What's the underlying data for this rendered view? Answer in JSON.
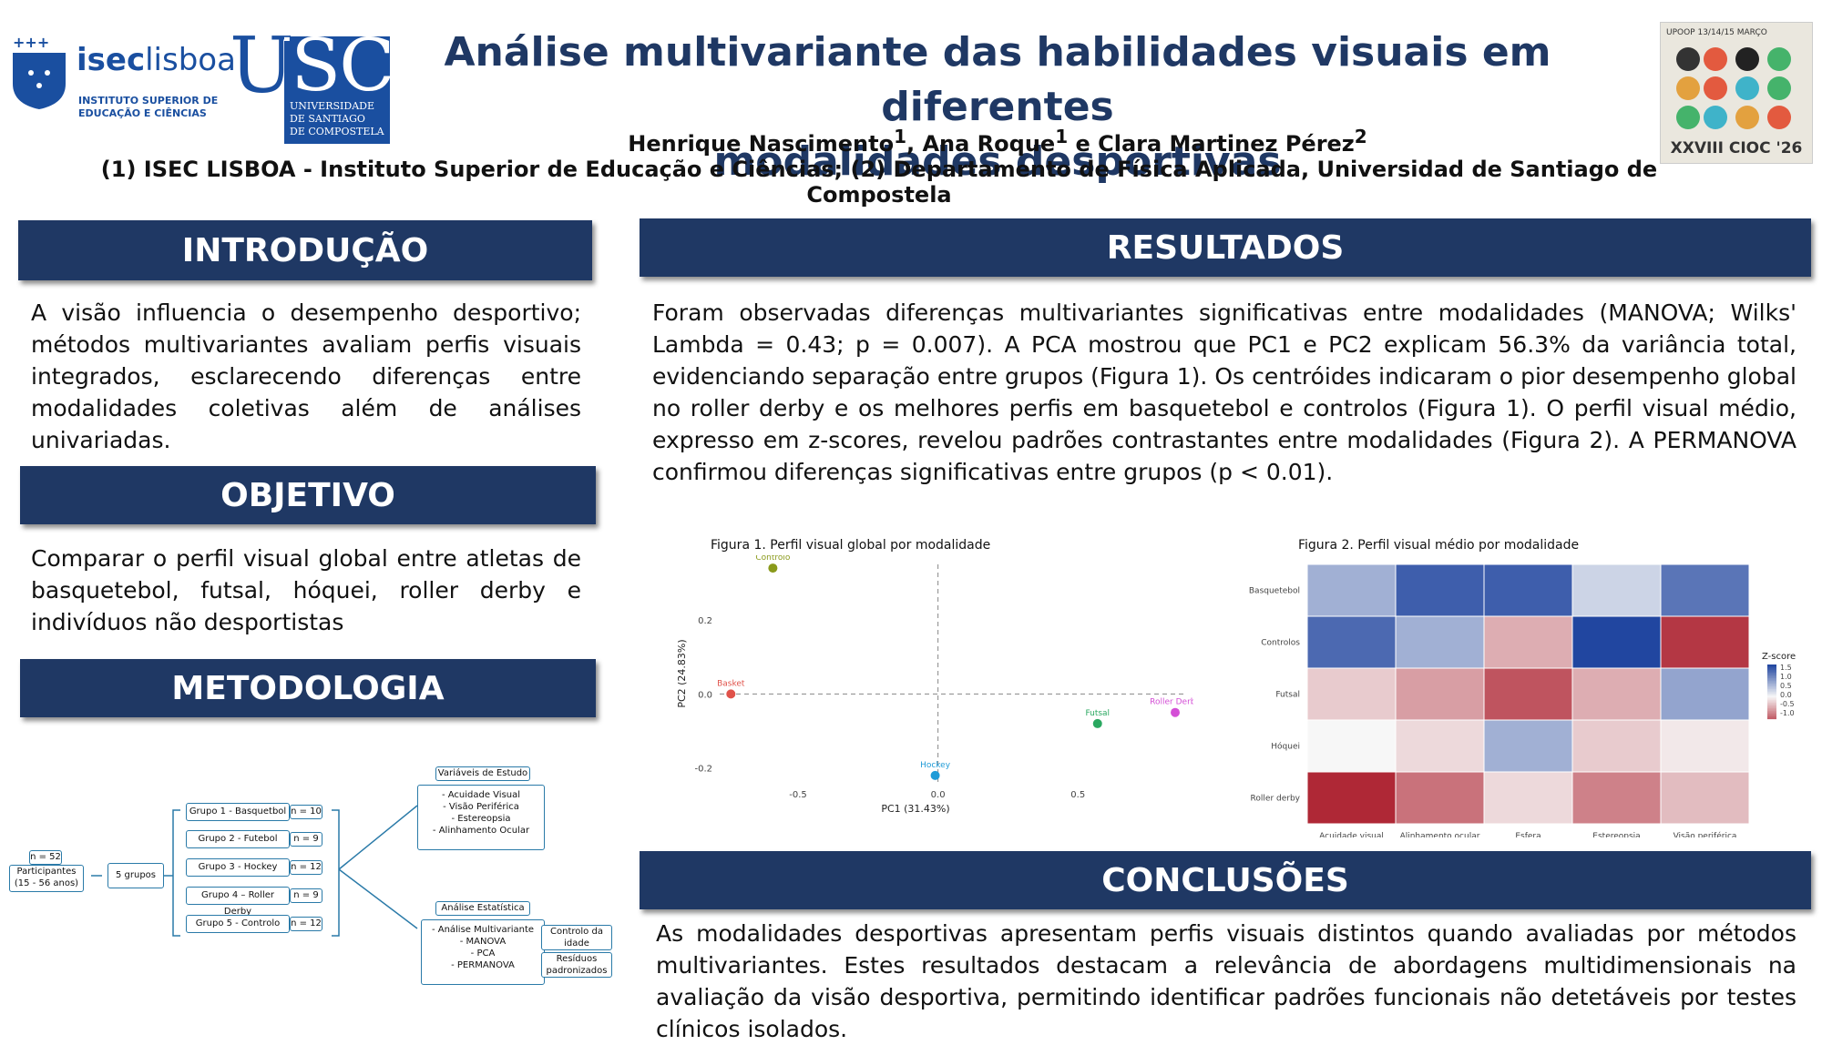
{
  "header": {
    "title_line1": "Análise multivariante das habilidades visuais em diferentes",
    "title_line2": "modalidades desportivas",
    "author1": "Henrique Nascimento",
    "author1_sup": "1",
    "author2": ", Ana Roque",
    "author2_sup": "1",
    "author3": " e Clara Martinez Pérez",
    "author3_sup": "2",
    "affiliations": "(1) ISEC LISBOA - Instituto Superior de Educação e Ciências; (2) Departamento de Física Aplicada, Universidad de Santiago de Compostela"
  },
  "logos": {
    "isec_name_bold": "isec",
    "isec_name_light": "lisboa",
    "isec_sub1": "INSTITUTO SUPERIOR DE",
    "isec_sub2": "EDUCAÇÃO E CIÊNCIAS",
    "usc_letters": "USC",
    "usc_sub1": "UNIVERSIDADE",
    "usc_sub2": "DE SANTIAGO",
    "usc_sub3": "DE COMPOSTELA",
    "cioc_top": "UPOOP    13/14/15 MARÇO",
    "cioc_bottom": "XXVIII CIOC '26"
  },
  "introducao": {
    "heading": "INTRODUÇÃO",
    "text": "A visão influencia o desempenho desportivo; métodos multivariantes avaliam perfis visuais integrados, esclarecendo diferenças entre modalidades coletivas além de análises univariadas."
  },
  "objetivo": {
    "heading": "OBJETIVO",
    "text": "Comparar o perfil visual global entre atletas de basquetebol, futsal, hóquei, roller derby e indivíduos não desportistas"
  },
  "metodologia": {
    "heading": "METODOLOGIA",
    "n_total": "n = 52",
    "participants": "Participantes",
    "participants_age": "(15 - 56 anos)",
    "five_groups": "5 grupos",
    "groups": [
      {
        "label": "Grupo 1 - Basquetbol",
        "n": "n = 10"
      },
      {
        "label": "Grupo 2 - Futebol",
        "n": "n = 9"
      },
      {
        "label": "Grupo 3 - Hockey",
        "n": "n = 12"
      },
      {
        "label": "Grupo 4 – Roller Derby",
        "n": "n = 9"
      },
      {
        "label": "Grupo 5 - Controlo",
        "n": "n = 12"
      }
    ],
    "vars_title": "Variáveis de Estudo",
    "vars": [
      "-   Acuidade Visual",
      "-   Visão Periférica",
      "-   Estereopsia",
      "-   Alinhamento Ocular"
    ],
    "stats_title": "Análise Estatística",
    "stats": [
      "-   Análise Multivariante",
      "-   MANOVA",
      "-   PCA",
      "-   PERMANOVA"
    ],
    "ctrl_age_1": "Controlo da",
    "ctrl_age_2": "idade",
    "residues_1": "Resíduos",
    "residues_2": "padronizados"
  },
  "resultados": {
    "heading": "RESULTADOS",
    "text": "Foram observadas diferenças multivariantes significativas entre modalidades (MANOVA; Wilks' Lambda = 0.43; p = 0.007). A PCA mostrou que PC1 e PC2 explicam 56.3% da variância total, evidenciando separação entre grupos (Figura 1). Os centróides indicaram o pior desempenho global no roller derby e os melhores perfis em basquetebol e controlos (Figura 1). O perfil visual médio, expresso em z-scores, revelou padrões contrastantes entre modalidades (Figura 2). A PERMANOVA confirmou diferenças significativas entre grupos (p < 0.01)."
  },
  "conclusoes": {
    "heading": "CONCLUSÕES",
    "text": "As modalidades desportivas apresentam perfis visuais distintos quando avaliadas por métodos multivariantes. Estes resultados destacam a relevância de abordagens multidimensionais na avaliação da visão desportiva, permitindo identificar padrões funcionais não detetáveis por testes clínicos isolados."
  },
  "chart_data": [
    {
      "type": "scatter",
      "title": "Figura 1. Perfil visual global por modalidade",
      "xlabel": "PC1 (31.43%)",
      "ylabel": "PC2 (24.83%)",
      "xlim": [
        -0.78,
        0.88
      ],
      "ylim": [
        -0.24,
        0.35
      ],
      "xticks": [
        -0.5,
        0.0,
        0.5
      ],
      "yticks": [
        0.2,
        0.0,
        -0.2
      ],
      "points": [
        {
          "label": "Controlo",
          "x": -0.59,
          "y": 0.34,
          "color": "#8a9a1b"
        },
        {
          "label": "Basket",
          "x": -0.74,
          "y": 0.0,
          "color": "#e0524a"
        },
        {
          "label": "Hockey",
          "x": -0.01,
          "y": -0.22,
          "color": "#1f9bd7"
        },
        {
          "label": "Futsal",
          "x": 0.57,
          "y": -0.08,
          "color": "#2aa860"
        },
        {
          "label": "Roller Derby",
          "x": 0.9,
          "y": -0.05,
          "color": "#d44fd6"
        }
      ]
    },
    {
      "type": "heatmap",
      "title": "Figura 2. Perfil visual médio por modalidade",
      "rows": [
        "Basquetebol",
        "Controlos",
        "Futsal",
        "Hóquei",
        "Roller derby"
      ],
      "columns": [
        "Acuidade visual",
        "Alinhamento ocular",
        "Esfera",
        "Estereopsia",
        "Visão periférica"
      ],
      "values": [
        [
          0.6,
          1.3,
          1.3,
          0.3,
          1.1
        ],
        [
          1.2,
          0.6,
          -0.5,
          1.6,
          -1.3
        ],
        [
          -0.3,
          -0.6,
          -1.1,
          -0.5,
          0.7
        ],
        [
          0.0,
          -0.2,
          0.6,
          -0.3,
          -0.1
        ],
        [
          -1.4,
          -0.9,
          -0.2,
          -0.8,
          -0.4
        ]
      ],
      "legend_title": "Z-score",
      "legend_ticks": [
        "1.5",
        "1.0",
        "0.5",
        "0.0",
        "-0.5",
        "-1.0"
      ]
    }
  ]
}
